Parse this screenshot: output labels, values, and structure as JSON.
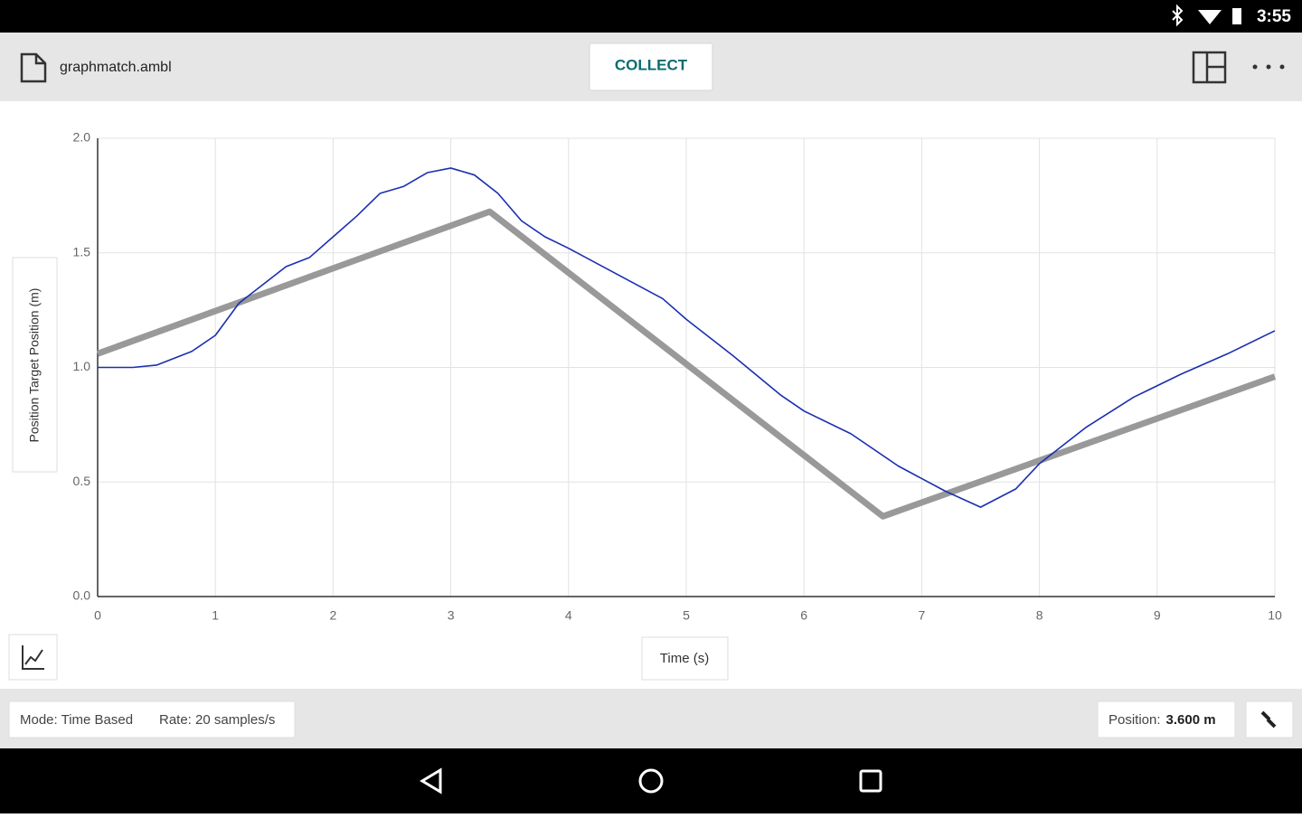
{
  "status_bar": {
    "time": "3:55"
  },
  "toolbar": {
    "file_name": "graphmatch.ambl",
    "collect_button": "COLLECT"
  },
  "chart_data": {
    "type": "line",
    "xlabel": "Time (s)",
    "ylabel": "Position Target Position (m)",
    "xlim": [
      0,
      10
    ],
    "ylim": [
      0,
      2
    ],
    "xticks": [
      0,
      1,
      2,
      3,
      4,
      5,
      6,
      7,
      8,
      9,
      10
    ],
    "yticks": [
      {
        "value": 0,
        "label": "0.0"
      },
      {
        "value": 0.5,
        "label": "0.5"
      },
      {
        "value": 1,
        "label": "1.0"
      },
      {
        "value": 1.5,
        "label": "1.5"
      },
      {
        "value": 2,
        "label": "2.0"
      }
    ],
    "grid": true,
    "series": [
      {
        "color": "#999999",
        "line_width": 7,
        "x": [
          0,
          3.33,
          6.67,
          10
        ],
        "values": [
          1.06,
          1.68,
          0.35,
          0.96
        ]
      },
      {
        "color": "#1a2fb0",
        "line_width": 1.6,
        "x": [
          0,
          0.3,
          0.5,
          0.8,
          1.0,
          1.2,
          1.4,
          1.6,
          1.8,
          2.0,
          2.2,
          2.4,
          2.6,
          2.8,
          3.0,
          3.2,
          3.4,
          3.6,
          3.8,
          4.0,
          4.4,
          4.8,
          5.0,
          5.4,
          5.8,
          6.0,
          6.4,
          6.8,
          7.2,
          7.5,
          7.8,
          8.0,
          8.4,
          8.8,
          9.2,
          9.6,
          10
        ],
        "values": [
          1.0,
          1.0,
          1.01,
          1.07,
          1.14,
          1.28,
          1.36,
          1.44,
          1.48,
          1.57,
          1.66,
          1.76,
          1.79,
          1.85,
          1.87,
          1.84,
          1.76,
          1.64,
          1.57,
          1.52,
          1.41,
          1.3,
          1.21,
          1.05,
          0.88,
          0.81,
          0.71,
          0.57,
          0.46,
          0.39,
          0.47,
          0.58,
          0.74,
          0.87,
          0.97,
          1.06,
          1.16
        ]
      }
    ]
  },
  "footer": {
    "mode": "Mode: Time Based",
    "rate": "Rate: 20 samples/s",
    "position_label": "Position:",
    "position_value": "3.600 m"
  }
}
